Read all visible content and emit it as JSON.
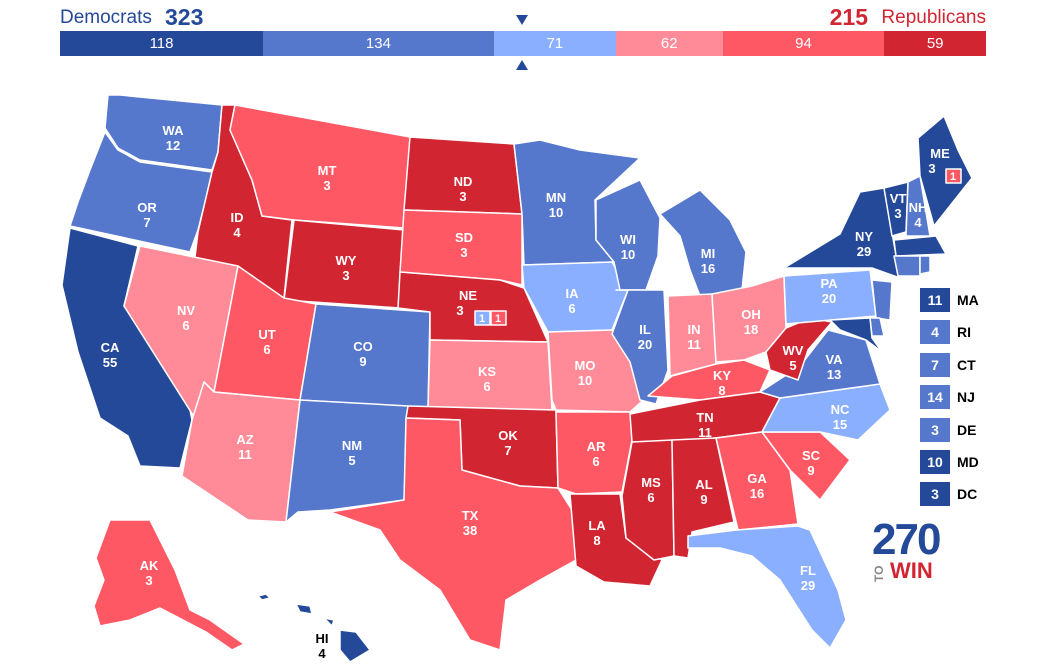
{
  "header": {
    "dem_name": "Democrats",
    "dem_total": "323",
    "rep_total": "215",
    "rep_name": "Republicans"
  },
  "bar": [
    {
      "label": "118",
      "value": 118,
      "color": "#244999"
    },
    {
      "label": "134",
      "value": 134,
      "color": "#5577cc"
    },
    {
      "label": "71",
      "value": 71,
      "color": "#8aafff"
    },
    {
      "label": "62",
      "value": 62,
      "color": "#ff8b98"
    },
    {
      "label": "94",
      "value": 94,
      "color": "#ff5865"
    },
    {
      "label": "59",
      "value": 59,
      "color": "#d22532"
    }
  ],
  "colors": {
    "safe_d": "#244999",
    "likely_d": "#5577cc",
    "lean_d": "#8aafff",
    "lean_r": "#ff8b98",
    "likely_r": "#ff5865",
    "safe_r": "#d22532"
  },
  "states": {
    "WA": {
      "abbr": "WA",
      "ev": "12"
    },
    "OR": {
      "abbr": "OR",
      "ev": "7"
    },
    "CA": {
      "abbr": "CA",
      "ev": "55"
    },
    "ID": {
      "abbr": "ID",
      "ev": "4"
    },
    "NV": {
      "abbr": "NV",
      "ev": "6"
    },
    "MT": {
      "abbr": "MT",
      "ev": "3"
    },
    "WY": {
      "abbr": "WY",
      "ev": "3"
    },
    "UT": {
      "abbr": "UT",
      "ev": "6"
    },
    "AZ": {
      "abbr": "AZ",
      "ev": "11"
    },
    "CO": {
      "abbr": "CO",
      "ev": "9"
    },
    "NM": {
      "abbr": "NM",
      "ev": "5"
    },
    "ND": {
      "abbr": "ND",
      "ev": "3"
    },
    "SD": {
      "abbr": "SD",
      "ev": "3"
    },
    "NE": {
      "abbr": "NE",
      "ev": "3",
      "cd1": "1",
      "cd2": "1"
    },
    "KS": {
      "abbr": "KS",
      "ev": "6"
    },
    "OK": {
      "abbr": "OK",
      "ev": "7"
    },
    "TX": {
      "abbr": "TX",
      "ev": "38"
    },
    "MN": {
      "abbr": "MN",
      "ev": "10"
    },
    "IA": {
      "abbr": "IA",
      "ev": "6"
    },
    "MO": {
      "abbr": "MO",
      "ev": "10"
    },
    "AR": {
      "abbr": "AR",
      "ev": "6"
    },
    "LA": {
      "abbr": "LA",
      "ev": "8"
    },
    "WI": {
      "abbr": "WI",
      "ev": "10"
    },
    "IL": {
      "abbr": "IL",
      "ev": "20"
    },
    "MI": {
      "abbr": "MI",
      "ev": "16"
    },
    "IN": {
      "abbr": "IN",
      "ev": "11"
    },
    "OH": {
      "abbr": "OH",
      "ev": "18"
    },
    "KY": {
      "abbr": "KY",
      "ev": "8"
    },
    "TN": {
      "abbr": "TN",
      "ev": "11"
    },
    "MS": {
      "abbr": "MS",
      "ev": "6"
    },
    "AL": {
      "abbr": "AL",
      "ev": "9"
    },
    "GA": {
      "abbr": "GA",
      "ev": "16"
    },
    "FL": {
      "abbr": "FL",
      "ev": "29"
    },
    "SC": {
      "abbr": "SC",
      "ev": "9"
    },
    "NC": {
      "abbr": "NC",
      "ev": "15"
    },
    "VA": {
      "abbr": "VA",
      "ev": "13"
    },
    "WV": {
      "abbr": "WV",
      "ev": "5"
    },
    "PA": {
      "abbr": "PA",
      "ev": "20"
    },
    "NY": {
      "abbr": "NY",
      "ev": "29"
    },
    "VT": {
      "abbr": "VT",
      "ev": "3"
    },
    "NH": {
      "abbr": "NH",
      "ev": "4"
    },
    "ME": {
      "abbr": "ME",
      "ev": "3",
      "cd2": "1"
    },
    "AK": {
      "abbr": "AK",
      "ev": "3"
    },
    "HI": {
      "abbr": "HI",
      "ev": "4"
    }
  },
  "small_states": [
    {
      "abbr": "MA",
      "ev": "11",
      "color": "#244999"
    },
    {
      "abbr": "RI",
      "ev": "4",
      "color": "#5577cc"
    },
    {
      "abbr": "CT",
      "ev": "7",
      "color": "#5577cc"
    },
    {
      "abbr": "NJ",
      "ev": "14",
      "color": "#5577cc"
    },
    {
      "abbr": "DE",
      "ev": "3",
      "color": "#5577cc"
    },
    {
      "abbr": "MD",
      "ev": "10",
      "color": "#244999"
    },
    {
      "abbr": "DC",
      "ev": "3",
      "color": "#244999"
    }
  ],
  "logo": {
    "number": "270",
    "to": "TO",
    "win": "WIN"
  }
}
